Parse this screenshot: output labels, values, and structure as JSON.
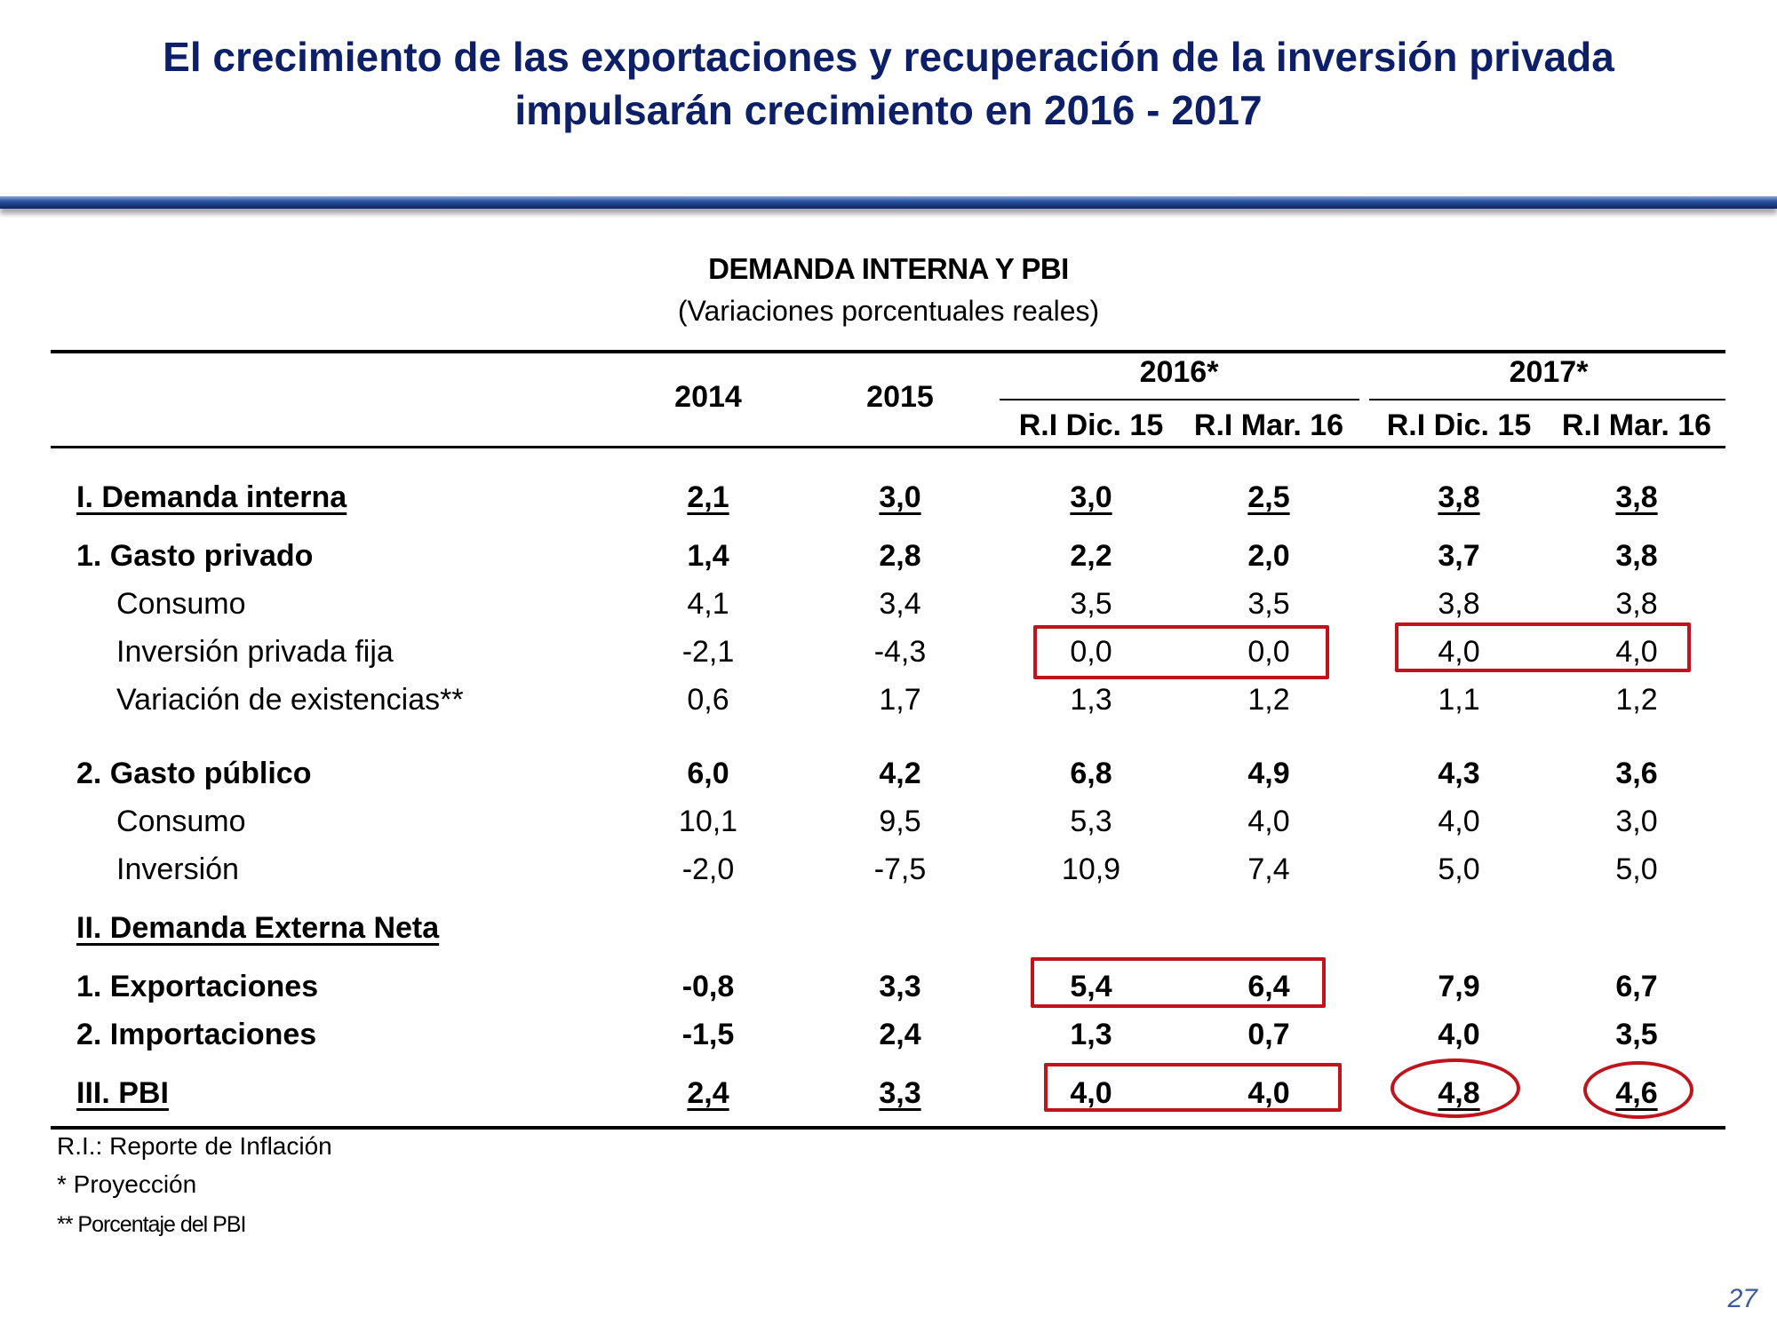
{
  "slide": {
    "title_line1": "El crecimiento de las exportaciones y recuperación de la inversión privada",
    "title_line2": "impulsarán crecimiento en 2016 - 2017",
    "page_number": "27",
    "accent_color": "#0d1f66",
    "highlight_color": "#c0141c"
  },
  "table": {
    "caption": "DEMANDA INTERNA Y PBI",
    "subcaption": "(Variaciones porcentuales reales)",
    "headers": {
      "y2014": "2014",
      "y2015": "2015",
      "y2016": "2016*",
      "y2017": "2017*",
      "sub1": "R.I Dic. 15",
      "sub2": "R.I Mar. 16",
      "sub3": "R.I Dic. 15",
      "sub4": "R.I Mar. 16"
    },
    "rows": [
      {
        "label": "I. Demanda interna",
        "values": [
          "2,1",
          "3,0",
          "3,0",
          "2,5",
          "3,8",
          "3,8"
        ]
      },
      {
        "label": "1. Gasto privado",
        "values": [
          "1,4",
          "2,8",
          "2,2",
          "2,0",
          "3,7",
          "3,8"
        ]
      },
      {
        "label": "Consumo",
        "values": [
          "4,1",
          "3,4",
          "3,5",
          "3,5",
          "3,8",
          "3,8"
        ]
      },
      {
        "label": "Inversión privada fija",
        "values": [
          "-2,1",
          "-4,3",
          "0,0",
          "0,0",
          "4,0",
          "4,0"
        ]
      },
      {
        "label": "Variación de existencias**",
        "values": [
          "0,6",
          "1,7",
          "1,3",
          "1,2",
          "1,1",
          "1,2"
        ]
      },
      {
        "label": "2. Gasto público",
        "values": [
          "6,0",
          "4,2",
          "6,8",
          "4,9",
          "4,3",
          "3,6"
        ]
      },
      {
        "label": "Consumo",
        "values": [
          "10,1",
          "9,5",
          "5,3",
          "4,0",
          "4,0",
          "3,0"
        ]
      },
      {
        "label": "Inversión",
        "values": [
          "-2,0",
          "-7,5",
          "10,9",
          "7,4",
          "5,0",
          "5,0"
        ]
      },
      {
        "label": "II. Demanda Externa Neta",
        "values": [
          "",
          "",
          "",
          "",
          "",
          ""
        ]
      },
      {
        "label": "1. Exportaciones",
        "values": [
          "-0,8",
          "3,3",
          "5,4",
          "6,4",
          "7,9",
          "6,7"
        ]
      },
      {
        "label": "2. Importaciones",
        "values": [
          "-1,5",
          "2,4",
          "1,3",
          "0,7",
          "4,0",
          "3,5"
        ]
      },
      {
        "label": "III. PBI",
        "values": [
          "2,4",
          "3,3",
          "4,0",
          "4,0",
          "4,8",
          "4,6"
        ]
      }
    ]
  },
  "notes": {
    "n1": "R.I.: Reporte de Inflación",
    "n2": "* Proyección",
    "n3": "** Porcentaje del PBI"
  }
}
